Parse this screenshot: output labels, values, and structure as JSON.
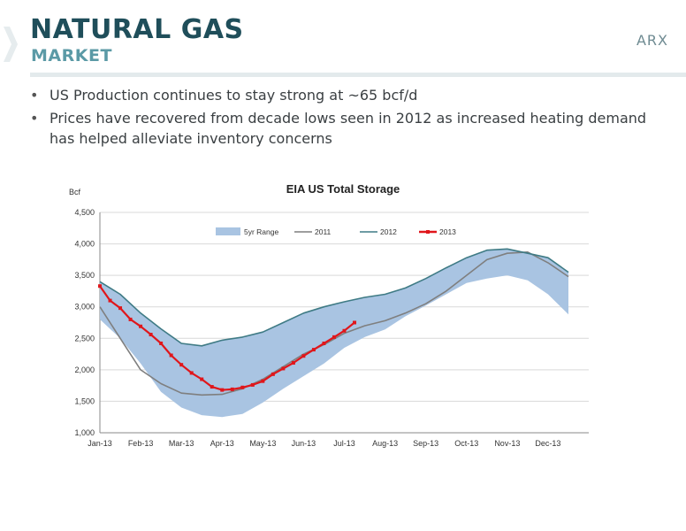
{
  "header": {
    "title": "NATURAL GAS",
    "subtitle": "MARKET",
    "brand": "ARX"
  },
  "bullets": [
    "US Production continues to stay strong at ~65 bcf/d",
    "Prices have recovered from decade lows seen in 2012 as increased heating demand has helped alleviate inventory concerns"
  ],
  "colors": {
    "title": "#1f4e5a",
    "subtitle": "#5b9aa6",
    "range_band": "#a9c4e2",
    "series_2011": "#7f7f7f",
    "series_2012": "#3f7b85",
    "series_2013": "#e0161b"
  },
  "chart_data": {
    "type": "area",
    "title": "EIA US Total Storage",
    "ylabel": "Bcf",
    "xlabel": "",
    "ylim": [
      1000,
      4500
    ],
    "yticks": [
      1000,
      1500,
      2000,
      2500,
      3000,
      3500,
      4000,
      4500
    ],
    "ytick_labels": [
      "1,000",
      "1,500",
      "2,000",
      "2,500",
      "3,000",
      "3,500",
      "4,000",
      "4,500"
    ],
    "categories": [
      "Jan-13",
      "Feb-13",
      "Mar-13",
      "Apr-13",
      "May-13",
      "Jun-13",
      "Jul-13",
      "Aug-13",
      "Sep-13",
      "Oct-13",
      "Nov-13",
      "Dec-13"
    ],
    "grid": true,
    "legend_position": "top-center",
    "legend": [
      "5yr Range",
      "2011",
      "2012",
      "2013"
    ],
    "range": {
      "name": "5yr Range",
      "x": [
        0,
        0.5,
        1,
        1.5,
        2,
        2.5,
        3,
        3.5,
        4,
        4.5,
        5,
        5.5,
        6,
        6.5,
        7,
        7.5,
        8,
        8.5,
        9,
        9.5,
        10,
        10.5,
        11,
        11.5
      ],
      "high": [
        3400,
        3200,
        2900,
        2650,
        2420,
        2380,
        2470,
        2520,
        2600,
        2750,
        2900,
        3000,
        3080,
        3150,
        3200,
        3300,
        3450,
        3620,
        3780,
        3900,
        3920,
        3850,
        3780,
        3550
      ],
      "low": [
        2800,
        2500,
        2100,
        1650,
        1400,
        1280,
        1250,
        1300,
        1480,
        1700,
        1900,
        2100,
        2350,
        2520,
        2640,
        2850,
        3020,
        3200,
        3380,
        3450,
        3500,
        3420,
        3200,
        2880
      ]
    },
    "series": [
      {
        "name": "2011",
        "x": [
          0,
          0.5,
          1,
          1.5,
          2,
          2.5,
          3,
          3.5,
          4,
          4.5,
          5,
          5.5,
          6,
          6.5,
          7,
          7.5,
          8,
          8.5,
          9,
          9.5,
          10,
          10.5,
          11,
          11.5
        ],
        "values": [
          3000,
          2500,
          2000,
          1780,
          1630,
          1600,
          1610,
          1700,
          1850,
          2050,
          2250,
          2400,
          2580,
          2700,
          2780,
          2900,
          3050,
          3250,
          3500,
          3750,
          3850,
          3870,
          3700,
          3480
        ]
      },
      {
        "name": "2012",
        "x": [
          0,
          0.5,
          1,
          1.5,
          2,
          2.5,
          3,
          3.5,
          4,
          4.5,
          5,
          5.5,
          6,
          6.5,
          7,
          7.5,
          8,
          8.5,
          9,
          9.5,
          10,
          10.5,
          11,
          11.5
        ],
        "values": [
          3400,
          3200,
          2900,
          2650,
          2420,
          2380,
          2470,
          2520,
          2600,
          2750,
          2900,
          3000,
          3080,
          3150,
          3200,
          3300,
          3450,
          3620,
          3780,
          3900,
          3920,
          3850,
          3780,
          3550
        ]
      },
      {
        "name": "2013",
        "x": [
          0,
          0.25,
          0.5,
          0.75,
          1,
          1.25,
          1.5,
          1.75,
          2,
          2.25,
          2.5,
          2.75,
          3,
          3.25,
          3.5,
          3.75,
          4,
          4.25,
          4.5,
          4.75,
          5,
          5.25,
          5.5,
          5.75,
          6,
          6.25
        ],
        "values": [
          3330,
          3100,
          2980,
          2800,
          2690,
          2560,
          2420,
          2230,
          2080,
          1950,
          1850,
          1730,
          1680,
          1690,
          1720,
          1760,
          1820,
          1930,
          2020,
          2110,
          2220,
          2320,
          2420,
          2520,
          2620,
          2750
        ]
      }
    ]
  }
}
